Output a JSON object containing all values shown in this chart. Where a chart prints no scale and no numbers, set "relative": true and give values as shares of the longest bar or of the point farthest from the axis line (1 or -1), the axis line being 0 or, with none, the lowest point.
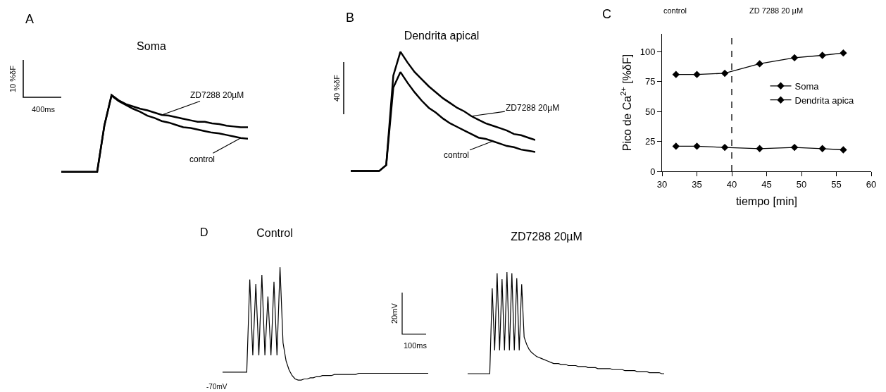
{
  "chart_data": [
    {
      "type": "line",
      "title": "Soma",
      "relative": true,
      "legend": false,
      "annotations": [
        "A",
        "10 %δF",
        "400ms"
      ],
      "categories": [
        null,
        null,
        null,
        null,
        null,
        null,
        null,
        null,
        null,
        null,
        null,
        null,
        null,
        null,
        null,
        null,
        null,
        null,
        null,
        null,
        null,
        null,
        null,
        null,
        null,
        null,
        null
      ],
      "series": [
        {
          "name": "ZD7288 20µM",
          "color": "#000000",
          "values": [
            0,
            0,
            0,
            0,
            0,
            0,
            0.6,
            1.0,
            0.93,
            0.88,
            0.85,
            0.82,
            0.8,
            0.77,
            0.74,
            0.73,
            0.71,
            0.69,
            0.67,
            0.65,
            0.65,
            0.63,
            0.62,
            0.6,
            0.59,
            0.58,
            0.58
          ]
        },
        {
          "name": "control",
          "color": "#000000",
          "values": [
            0,
            0,
            0,
            0,
            0,
            0,
            0.6,
            0.99,
            0.92,
            0.87,
            0.82,
            0.78,
            0.73,
            0.7,
            0.66,
            0.64,
            0.61,
            0.58,
            0.57,
            0.55,
            0.53,
            0.51,
            0.5,
            0.48,
            0.46,
            0.44,
            0.43
          ]
        }
      ]
    },
    {
      "type": "line",
      "title": "Dendrita apical",
      "relative": true,
      "legend": false,
      "annotations": [
        "B",
        "40 %δF"
      ],
      "categories": [
        null,
        null,
        null,
        null,
        null,
        null,
        null,
        null,
        null,
        null,
        null,
        null,
        null,
        null,
        null,
        null,
        null,
        null,
        null,
        null,
        null,
        null,
        null,
        null,
        null,
        null,
        null
      ],
      "series": [
        {
          "name": "ZD7288 20µM",
          "color": "#000000",
          "values": [
            0,
            0,
            0,
            0,
            0,
            0.05,
            0.8,
            1.0,
            0.91,
            0.83,
            0.77,
            0.71,
            0.66,
            0.61,
            0.57,
            0.53,
            0.5,
            0.46,
            0.43,
            0.4,
            0.38,
            0.36,
            0.34,
            0.31,
            0.3,
            0.28,
            0.26
          ]
        },
        {
          "name": "control",
          "color": "#000000",
          "values": [
            0,
            0,
            0,
            0,
            0,
            0.05,
            0.7,
            0.83,
            0.74,
            0.66,
            0.59,
            0.53,
            0.49,
            0.44,
            0.4,
            0.37,
            0.34,
            0.31,
            0.28,
            0.27,
            0.25,
            0.23,
            0.21,
            0.2,
            0.18,
            0.17,
            0.16
          ]
        }
      ]
    },
    {
      "type": "line",
      "xlabel": "tiempo [min]",
      "ylabel": "Pico de Ca$^{2+}$ [%δF]",
      "annotations": [
        "C",
        "control",
        "ZD 7288 20 µM"
      ],
      "x": [
        32,
        35,
        39,
        44,
        49,
        53,
        56
      ],
      "xlim": [
        30,
        60
      ],
      "xticks": [
        30,
        35,
        40,
        45,
        50,
        55,
        60
      ],
      "ylim": [
        0,
        115
      ],
      "yticks": [
        0,
        25,
        50,
        75,
        100
      ],
      "marker": "diamond",
      "legend": "right",
      "ref_lines": [
        {
          "axis": "x",
          "value": 40,
          "line_style": "dashed",
          "color": "#000000"
        }
      ],
      "series": [
        {
          "name": "Soma",
          "color": "#000000",
          "values": [
            21,
            21,
            20,
            19,
            20,
            19,
            18
          ]
        },
        {
          "name": "Dendrita apica",
          "color": "#000000",
          "values": [
            81,
            81,
            82,
            90,
            95,
            97,
            99
          ]
        }
      ]
    },
    {
      "type": "line",
      "title": "Control",
      "relative": true,
      "legend": false,
      "annotations": [
        "D",
        "-70mV",
        "20mV",
        "100ms"
      ],
      "categories": [
        null,
        null,
        null,
        null,
        null,
        null,
        null,
        null,
        null,
        null,
        null,
        null,
        null,
        null,
        null,
        null,
        null,
        null,
        null,
        null,
        null,
        null,
        null,
        null,
        null,
        null,
        null,
        null,
        null,
        null,
        null,
        null,
        null,
        null,
        null,
        null,
        null,
        null,
        null,
        null,
        null,
        null,
        null,
        null,
        null,
        null,
        null,
        null,
        null,
        null,
        null,
        null,
        null,
        null,
        null,
        null,
        null,
        null,
        null,
        null,
        null,
        null,
        null,
        null,
        null,
        null,
        null,
        null,
        null
      ],
      "color": "#000000",
      "values": [
        0.07,
        0.07,
        0.07,
        0.07,
        0.07,
        0.07,
        0.07,
        0.07,
        0.07,
        0.89,
        0.22,
        0.85,
        0.22,
        0.93,
        0.22,
        0.74,
        0.22,
        0.87,
        0.22,
        1.0,
        0.33,
        0.17,
        0.09,
        0.04,
        0.01,
        0,
        0,
        0.01,
        0.01,
        0.02,
        0.02,
        0.03,
        0.03,
        0.04,
        0.04,
        0.04,
        0.04,
        0.05,
        0.05,
        0.05,
        0.05,
        0.05,
        0.05,
        0.05,
        0.05,
        0.06,
        0.06,
        0.06,
        0.06,
        0.06,
        0.06,
        0.06,
        0.06,
        0.06,
        0.06,
        0.06,
        0.06,
        0.06,
        0.06,
        0.06,
        0.06,
        0.06,
        0.06,
        0.06,
        0.06,
        0.06,
        0.06,
        0.06,
        0.06
      ]
    },
    {
      "type": "line",
      "title": "ZD7288 20µM",
      "relative": true,
      "legend": false,
      "categories": [
        null,
        null,
        null,
        null,
        null,
        null,
        null,
        null,
        null,
        null,
        null,
        null,
        null,
        null,
        null,
        null,
        null,
        null,
        null,
        null,
        null,
        null,
        null,
        null,
        null,
        null,
        null,
        null,
        null,
        null,
        null,
        null,
        null,
        null,
        null,
        null,
        null,
        null,
        null,
        null,
        null,
        null,
        null,
        null,
        null,
        null,
        null,
        null,
        null,
        null,
        null,
        null,
        null,
        null,
        null,
        null,
        null,
        null,
        null,
        null,
        null,
        null,
        null,
        null,
        null,
        null,
        null,
        null,
        null,
        null,
        null,
        null,
        null,
        null,
        null,
        null,
        null,
        null,
        null,
        null,
        null
      ],
      "color": "#000000",
      "values": [
        0,
        0,
        0,
        0,
        0,
        0,
        0,
        0,
        0,
        0,
        0.84,
        0.23,
        0.99,
        0.23,
        0.93,
        0.23,
        1.0,
        0.23,
        0.99,
        0.23,
        0.94,
        0.23,
        0.88,
        0.36,
        0.29,
        0.24,
        0.21,
        0.19,
        0.17,
        0.16,
        0.15,
        0.14,
        0.13,
        0.12,
        0.11,
        0.1,
        0.1,
        0.1,
        0.09,
        0.09,
        0.09,
        0.08,
        0.08,
        0.08,
        0.08,
        0.07,
        0.07,
        0.07,
        0.07,
        0.06,
        0.06,
        0.06,
        0.06,
        0.05,
        0.05,
        0.05,
        0.05,
        0.05,
        0.05,
        0.04,
        0.04,
        0.04,
        0.04,
        0.04,
        0.03,
        0.03,
        0.03,
        0.03,
        0.03,
        0.02,
        0.02,
        0.02,
        0.02,
        0.02,
        0.01,
        0.01,
        0.01,
        0.01,
        0.01,
        0,
        0
      ]
    }
  ]
}
